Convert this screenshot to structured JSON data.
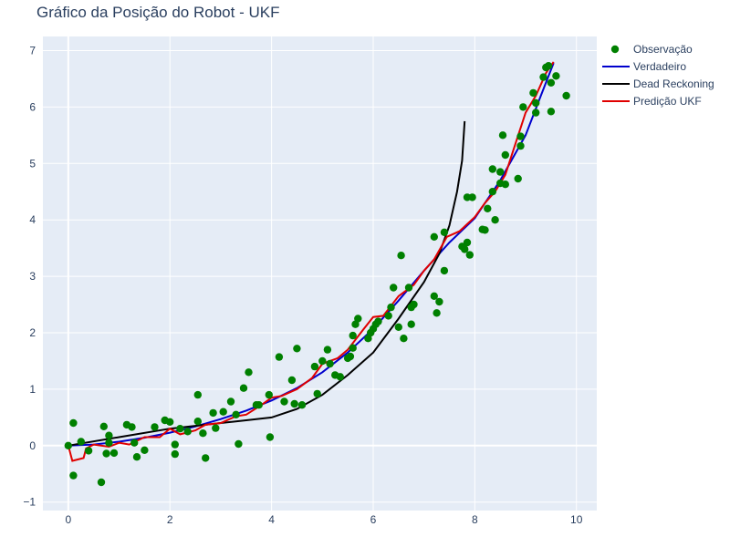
{
  "chart_data": {
    "type": "scatter",
    "title": "Gráfico da Posição do Robot - UKF",
    "xlabel": "",
    "ylabel": "",
    "xlim": [
      -0.5,
      10.4
    ],
    "ylim": [
      -1.15,
      7.25
    ],
    "xticks": [
      0,
      2,
      4,
      6,
      8,
      10
    ],
    "yticks": [
      -1,
      0,
      1,
      2,
      3,
      4,
      5,
      6,
      7
    ],
    "grid": true,
    "legend_position": "top-right",
    "series": [
      {
        "name": "Observação",
        "mode": "markers",
        "color": "#008000",
        "points": [
          [
            0.0,
            0.0
          ],
          [
            0.1,
            0.4
          ],
          [
            0.1,
            -0.53
          ],
          [
            0.25,
            0.07
          ],
          [
            0.4,
            -0.09
          ],
          [
            0.65,
            -0.65
          ],
          [
            0.7,
            0.34
          ],
          [
            0.75,
            -0.14
          ],
          [
            0.8,
            0.18
          ],
          [
            0.9,
            -0.13
          ],
          [
            0.8,
            0.05
          ],
          [
            1.15,
            0.37
          ],
          [
            1.25,
            0.33
          ],
          [
            1.35,
            -0.2
          ],
          [
            1.3,
            0.05
          ],
          [
            1.5,
            -0.08
          ],
          [
            1.7,
            0.33
          ],
          [
            1.9,
            0.45
          ],
          [
            2.0,
            0.42
          ],
          [
            2.1,
            -0.15
          ],
          [
            2.1,
            0.02
          ],
          [
            2.2,
            0.3
          ],
          [
            2.35,
            0.25
          ],
          [
            2.55,
            0.43
          ],
          [
            2.55,
            0.9
          ],
          [
            2.65,
            0.22
          ],
          [
            2.7,
            -0.22
          ],
          [
            2.85,
            0.58
          ],
          [
            2.9,
            0.31
          ],
          [
            3.05,
            0.6
          ],
          [
            3.2,
            0.78
          ],
          [
            3.3,
            0.55
          ],
          [
            3.35,
            0.03
          ],
          [
            3.45,
            1.02
          ],
          [
            3.55,
            1.3
          ],
          [
            3.7,
            0.72
          ],
          [
            3.75,
            0.72
          ],
          [
            3.95,
            0.9
          ],
          [
            3.97,
            0.15
          ],
          [
            4.15,
            1.57
          ],
          [
            4.25,
            0.78
          ],
          [
            4.4,
            1.16
          ],
          [
            4.45,
            0.74
          ],
          [
            4.5,
            1.72
          ],
          [
            4.6,
            0.72
          ],
          [
            4.85,
            1.4
          ],
          [
            4.9,
            0.92
          ],
          [
            5.0,
            1.5
          ],
          [
            5.1,
            1.7
          ],
          [
            5.15,
            1.45
          ],
          [
            5.25,
            1.25
          ],
          [
            5.35,
            1.22
          ],
          [
            5.5,
            1.55
          ],
          [
            5.55,
            1.58
          ],
          [
            5.6,
            1.95
          ],
          [
            5.6,
            1.73
          ],
          [
            5.65,
            2.15
          ],
          [
            5.7,
            2.25
          ],
          [
            5.9,
            1.9
          ],
          [
            5.95,
            2.0
          ],
          [
            6.0,
            2.07
          ],
          [
            6.05,
            2.15
          ],
          [
            6.1,
            2.2
          ],
          [
            6.3,
            2.3
          ],
          [
            6.35,
            2.45
          ],
          [
            6.4,
            2.8
          ],
          [
            6.5,
            2.1
          ],
          [
            6.55,
            3.37
          ],
          [
            6.6,
            1.9
          ],
          [
            6.7,
            2.8
          ],
          [
            6.75,
            2.45
          ],
          [
            6.75,
            2.15
          ],
          [
            6.8,
            2.5
          ],
          [
            7.2,
            3.7
          ],
          [
            7.2,
            2.65
          ],
          [
            7.25,
            2.35
          ],
          [
            7.3,
            2.55
          ],
          [
            7.4,
            3.78
          ],
          [
            7.4,
            3.1
          ],
          [
            7.75,
            3.53
          ],
          [
            7.8,
            3.48
          ],
          [
            7.85,
            4.4
          ],
          [
            7.85,
            3.6
          ],
          [
            7.9,
            3.38
          ],
          [
            7.95,
            4.4
          ],
          [
            8.15,
            3.83
          ],
          [
            8.2,
            3.82
          ],
          [
            8.25,
            4.2
          ],
          [
            8.35,
            4.5
          ],
          [
            8.35,
            4.9
          ],
          [
            8.4,
            4.0
          ],
          [
            8.5,
            4.85
          ],
          [
            8.5,
            4.65
          ],
          [
            8.55,
            5.5
          ],
          [
            8.6,
            5.15
          ],
          [
            8.6,
            4.63
          ],
          [
            8.85,
            4.73
          ],
          [
            8.9,
            5.48
          ],
          [
            8.9,
            5.31
          ],
          [
            8.95,
            6.0
          ],
          [
            9.15,
            6.25
          ],
          [
            9.2,
            5.9
          ],
          [
            9.2,
            6.07
          ],
          [
            9.35,
            6.53
          ],
          [
            9.4,
            6.7
          ],
          [
            9.45,
            6.73
          ],
          [
            9.5,
            5.92
          ],
          [
            9.5,
            6.43
          ],
          [
            9.6,
            6.55
          ],
          [
            9.8,
            6.2
          ]
        ]
      },
      {
        "name": "Verdadeiro",
        "mode": "lines",
        "color": "#0000cd",
        "points": [
          [
            0.0,
            0.0
          ],
          [
            0.5,
            0.02
          ],
          [
            1.0,
            0.07
          ],
          [
            1.5,
            0.14
          ],
          [
            2.0,
            0.23
          ],
          [
            2.5,
            0.34
          ],
          [
            3.0,
            0.47
          ],
          [
            3.5,
            0.62
          ],
          [
            4.0,
            0.8
          ],
          [
            4.5,
            1.02
          ],
          [
            5.0,
            1.3
          ],
          [
            5.5,
            1.65
          ],
          [
            6.0,
            2.07
          ],
          [
            6.5,
            2.57
          ],
          [
            7.0,
            3.1
          ],
          [
            7.5,
            3.6
          ],
          [
            8.0,
            4.03
          ],
          [
            8.5,
            4.7
          ],
          [
            9.0,
            5.5
          ],
          [
            9.3,
            6.2
          ],
          [
            9.55,
            6.78
          ]
        ]
      },
      {
        "name": "Dead Reckoning",
        "mode": "lines",
        "color": "#000000",
        "points": [
          [
            0.0,
            0.0
          ],
          [
            1.0,
            0.15
          ],
          [
            2.0,
            0.3
          ],
          [
            3.0,
            0.4
          ],
          [
            3.5,
            0.45
          ],
          [
            4.0,
            0.5
          ],
          [
            4.5,
            0.65
          ],
          [
            5.0,
            0.9
          ],
          [
            5.5,
            1.25
          ],
          [
            6.0,
            1.65
          ],
          [
            6.5,
            2.25
          ],
          [
            7.0,
            2.9
          ],
          [
            7.3,
            3.4
          ],
          [
            7.5,
            3.9
          ],
          [
            7.65,
            4.5
          ],
          [
            7.75,
            5.05
          ],
          [
            7.8,
            5.75
          ]
        ]
      },
      {
        "name": "Predição UKF",
        "mode": "lines",
        "color": "#e00000",
        "points": [
          [
            0.0,
            0.0
          ],
          [
            0.08,
            -0.27
          ],
          [
            0.3,
            -0.22
          ],
          [
            0.35,
            -0.05
          ],
          [
            0.5,
            0.02
          ],
          [
            0.8,
            -0.02
          ],
          [
            1.0,
            0.05
          ],
          [
            1.2,
            0.02
          ],
          [
            1.5,
            0.15
          ],
          [
            1.8,
            0.15
          ],
          [
            2.0,
            0.3
          ],
          [
            2.2,
            0.2
          ],
          [
            2.5,
            0.27
          ],
          [
            2.7,
            0.37
          ],
          [
            3.0,
            0.4
          ],
          [
            3.3,
            0.52
          ],
          [
            3.5,
            0.55
          ],
          [
            3.8,
            0.72
          ],
          [
            4.0,
            0.85
          ],
          [
            4.2,
            0.88
          ],
          [
            4.5,
            1.0
          ],
          [
            4.8,
            1.2
          ],
          [
            5.0,
            1.45
          ],
          [
            5.3,
            1.55
          ],
          [
            5.5,
            1.7
          ],
          [
            5.8,
            2.05
          ],
          [
            6.0,
            2.28
          ],
          [
            6.2,
            2.3
          ],
          [
            6.5,
            2.65
          ],
          [
            6.8,
            2.85
          ],
          [
            7.0,
            3.1
          ],
          [
            7.2,
            3.3
          ],
          [
            7.45,
            3.7
          ],
          [
            7.7,
            3.8
          ],
          [
            8.0,
            4.05
          ],
          [
            8.2,
            4.3
          ],
          [
            8.4,
            4.5
          ],
          [
            8.6,
            4.8
          ],
          [
            8.8,
            5.35
          ],
          [
            9.0,
            5.9
          ],
          [
            9.2,
            6.2
          ],
          [
            9.4,
            6.6
          ],
          [
            9.55,
            6.8
          ]
        ]
      }
    ]
  }
}
